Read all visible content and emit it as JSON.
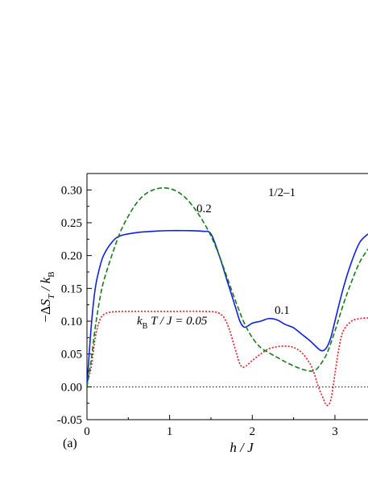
{
  "chart_data": {
    "type": "line",
    "panel_label": "(a)",
    "xlabel": "h / J",
    "ylabel": "−ΔS_T / k_B",
    "xlim": [
      0,
      3.4
    ],
    "ylim": [
      -0.05,
      0.325
    ],
    "xticks": [
      0,
      1,
      2,
      3
    ],
    "xtick_labels": [
      "0",
      "1",
      "2",
      "3"
    ],
    "yticks": [
      -0.05,
      0,
      0.05,
      0.1,
      0.15,
      0.2,
      0.25,
      0.3
    ],
    "ytick_labels": [
      "-0.05",
      "0.00",
      "0.05",
      "0.10",
      "0.15",
      "0.20",
      "0.25",
      "0.30"
    ],
    "grid": false,
    "legend": "none",
    "annotations": {
      "system": "1/2–1",
      "series_0_2": "0.2",
      "series_0_1": "0.1",
      "series_0_05_prefix": "k",
      "series_0_05_sub": "B",
      "series_0_05_suffix": " T / J = 0.05"
    },
    "series": [
      {
        "label": "0.05",
        "color": "#e8141e",
        "dash": "dotted",
        "x": [
          0,
          0.05,
          0.1,
          0.15,
          0.2,
          0.3,
          0.5,
          1.0,
          1.4,
          1.6,
          1.7,
          1.8,
          1.85,
          1.9,
          2.0,
          2.1,
          2.2,
          2.3,
          2.4,
          2.5,
          2.6,
          2.7,
          2.75,
          2.8,
          2.85,
          2.9,
          2.95,
          3.0,
          3.05,
          3.1,
          3.2,
          3.3,
          3.4
        ],
        "y": [
          0.005,
          0.03,
          0.075,
          0.1,
          0.11,
          0.114,
          0.115,
          0.115,
          0.115,
          0.112,
          0.095,
          0.055,
          0.035,
          0.03,
          0.04,
          0.05,
          0.058,
          0.061,
          0.062,
          0.06,
          0.052,
          0.035,
          0.02,
          0.0,
          -0.015,
          -0.028,
          -0.02,
          0.02,
          0.06,
          0.085,
          0.1,
          0.104,
          0.105
        ]
      },
      {
        "label": "0.1",
        "color": "#1020e0",
        "dash": "solid",
        "x": [
          0,
          0.05,
          0.1,
          0.15,
          0.2,
          0.3,
          0.4,
          0.6,
          0.8,
          1.0,
          1.2,
          1.4,
          1.5,
          1.6,
          1.7,
          1.8,
          1.85,
          1.9,
          1.95,
          2.0,
          2.1,
          2.2,
          2.3,
          2.4,
          2.5,
          2.6,
          2.7,
          2.8,
          2.85,
          2.9,
          2.95,
          3.0,
          3.1,
          3.2,
          3.3,
          3.4
        ],
        "y": [
          0.0,
          0.09,
          0.15,
          0.18,
          0.2,
          0.22,
          0.23,
          0.235,
          0.237,
          0.238,
          0.238,
          0.237,
          0.233,
          0.2,
          0.16,
          0.12,
          0.1,
          0.091,
          0.093,
          0.097,
          0.1,
          0.104,
          0.102,
          0.095,
          0.09,
          0.08,
          0.07,
          0.058,
          0.055,
          0.06,
          0.075,
          0.1,
          0.15,
          0.19,
          0.22,
          0.233
        ]
      },
      {
        "label": "0.2",
        "color": "#1a7a1a",
        "dash": "dashed",
        "x": [
          0,
          0.05,
          0.1,
          0.15,
          0.2,
          0.3,
          0.4,
          0.5,
          0.6,
          0.7,
          0.8,
          0.9,
          1.0,
          1.1,
          1.2,
          1.3,
          1.4,
          1.5,
          1.6,
          1.7,
          1.8,
          1.9,
          2.0,
          2.1,
          2.2,
          2.3,
          2.4,
          2.5,
          2.6,
          2.7,
          2.75,
          2.8,
          2.9,
          3.0,
          3.1,
          3.2,
          3.3,
          3.4
        ],
        "y": [
          0.0,
          0.04,
          0.09,
          0.13,
          0.16,
          0.2,
          0.235,
          0.26,
          0.28,
          0.293,
          0.3,
          0.303,
          0.302,
          0.297,
          0.287,
          0.272,
          0.253,
          0.23,
          0.2,
          0.165,
          0.13,
          0.098,
          0.075,
          0.06,
          0.052,
          0.045,
          0.038,
          0.032,
          0.027,
          0.024,
          0.025,
          0.03,
          0.05,
          0.085,
          0.125,
          0.16,
          0.19,
          0.21
        ]
      },
      {
        "label": "zero",
        "color": "#000000",
        "dash": "dotted",
        "x": [
          0,
          3.4
        ],
        "y": [
          0,
          0
        ]
      }
    ]
  }
}
